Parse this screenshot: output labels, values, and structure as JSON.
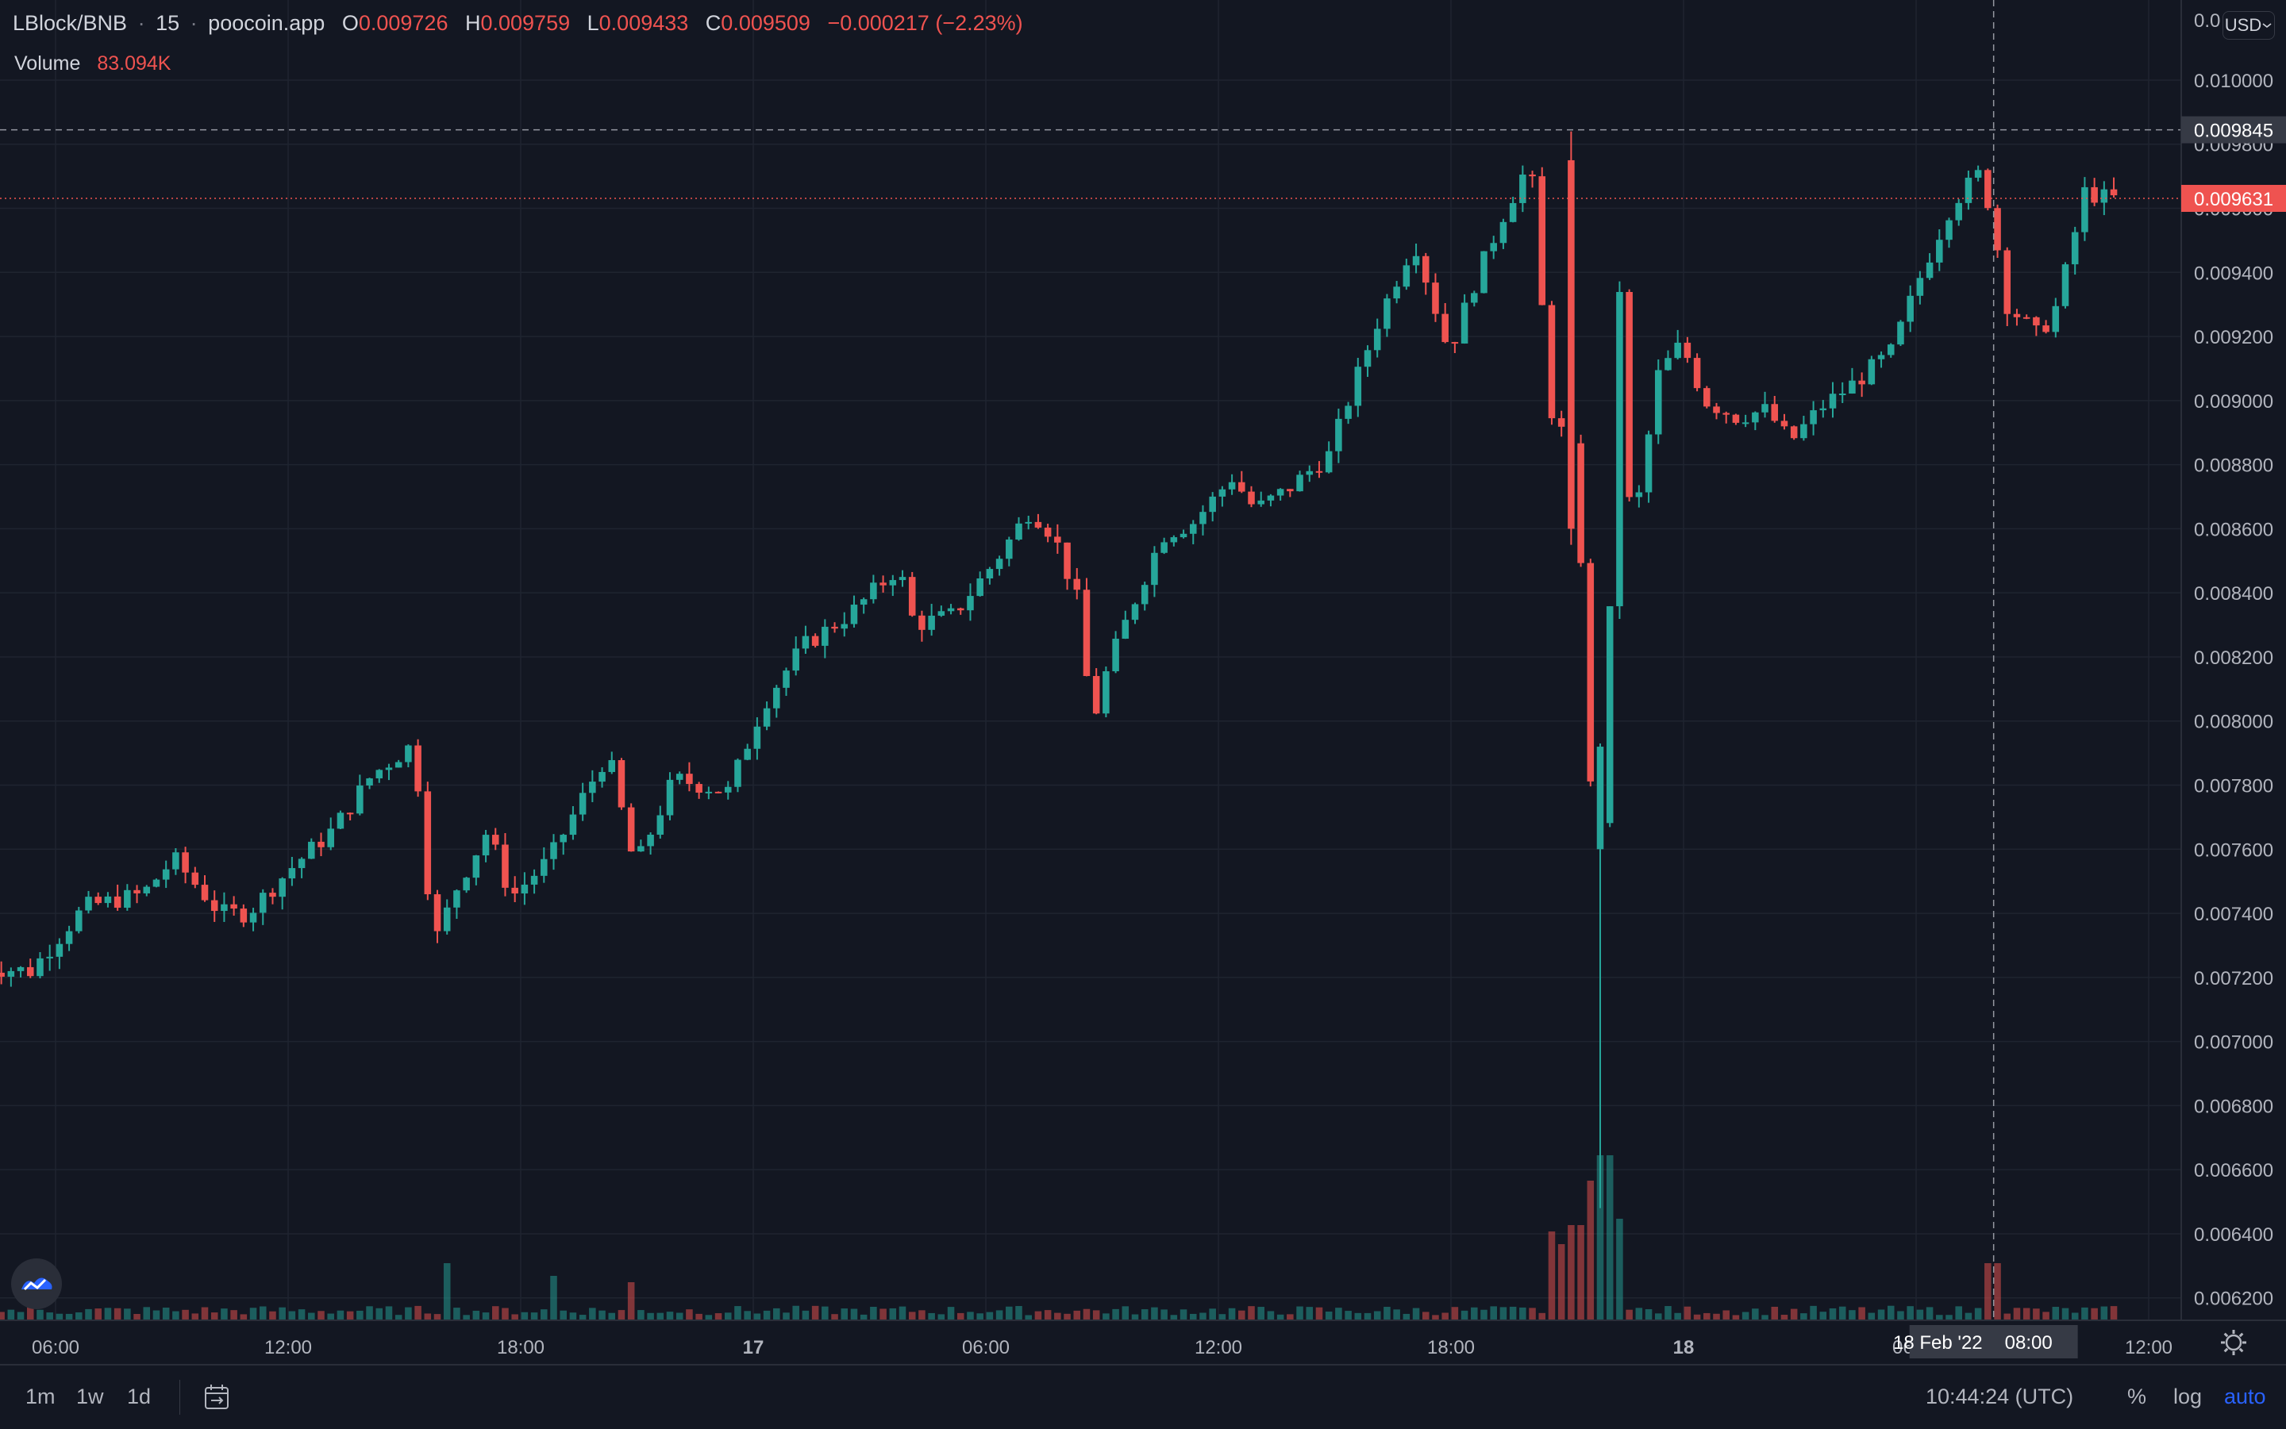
{
  "header": {
    "symbol": "LBlock/BNB",
    "interval": "15",
    "source": "poocoin.app",
    "open_label": "O",
    "open": "0.009726",
    "high_label": "H",
    "high": "0.009759",
    "low_label": "L",
    "low": "0.009433",
    "close_label": "C",
    "close": "0.009509",
    "change": "−0.000217 (−2.23%)"
  },
  "volume_legend": {
    "name": "Volume",
    "value": "83.094K"
  },
  "currency_button": {
    "label": "USD",
    "icon": "chevron-down-icon"
  },
  "price_labels": {
    "crosshair_price": "0.009845",
    "last_price": "0.009631",
    "top_partial": "0.0"
  },
  "crosshair_time": {
    "date": "18 Feb '22",
    "time": "08:00"
  },
  "bottom_bar": {
    "timeframes": [
      "1m",
      "1w",
      "1d"
    ],
    "goto_icon": "goto-date-icon",
    "clock": "10:44:24 (UTC)",
    "percent": "%",
    "log": "log",
    "auto": "auto"
  },
  "colors": {
    "up": "#26a69a",
    "down": "#ef5350",
    "background": "#131722",
    "grid": "#1f2430"
  },
  "chart_data": {
    "type": "candlestick",
    "title": "LBlock/BNB · 15 · poocoin.app",
    "y_axis_ticks": [
      "0.006200",
      "0.006400",
      "0.006600",
      "0.006800",
      "0.007000",
      "0.007200",
      "0.007400",
      "0.007600",
      "0.007800",
      "0.008000",
      "0.008200",
      "0.008400",
      "0.008600",
      "0.008800",
      "0.009000",
      "0.009200",
      "0.009400",
      "0.009600",
      "0.009800",
      "0.010000"
    ],
    "ylim": [
      0.00613,
      0.01025
    ],
    "x_axis_ticks": [
      {
        "label": "06:00",
        "hour": 6
      },
      {
        "label": "12:00",
        "hour": 12
      },
      {
        "label": "18:00",
        "hour": 18
      },
      {
        "label": "17",
        "hour": 24,
        "bold": true
      },
      {
        "label": "06:00",
        "hour": 30
      },
      {
        "label": "12:00",
        "hour": 36
      },
      {
        "label": "18:00",
        "hour": 42
      },
      {
        "label": "18",
        "hour": 48,
        "bold": true
      },
      {
        "label": "06:00",
        "hour": 54
      },
      {
        "label": "12:00",
        "hour": 60
      }
    ],
    "x_unit": "hours since 16 Feb '22 00:00 (UTC)",
    "candle_interval_minutes": 15,
    "crosshair": {
      "hour": 56,
      "price": 0.009845
    },
    "last_price": 0.009631,
    "series": [
      {
        "name": "price",
        "anchors": [
          [
            4.6,
            0.00723
          ],
          [
            5.6,
            0.00722
          ],
          [
            7.0,
            0.00742
          ],
          [
            8.5,
            0.00746
          ],
          [
            9.3,
            0.00757
          ],
          [
            10.5,
            0.0074
          ],
          [
            11.2,
            0.0074
          ],
          [
            12.4,
            0.00755
          ],
          [
            13.4,
            0.00766
          ],
          [
            14.4,
            0.00783
          ],
          [
            15.5,
            0.00793
          ],
          [
            16.0,
            0.0073
          ],
          [
            16.6,
            0.00748
          ],
          [
            17.4,
            0.00766
          ],
          [
            18.0,
            0.00745
          ],
          [
            19.0,
            0.00757
          ],
          [
            19.8,
            0.00775
          ],
          [
            20.5,
            0.0079
          ],
          [
            21.2,
            0.00754
          ],
          [
            22.2,
            0.00782
          ],
          [
            23.6,
            0.00778
          ],
          [
            24.5,
            0.00805
          ],
          [
            25.5,
            0.00823
          ],
          [
            26.8,
            0.00834
          ],
          [
            28.0,
            0.00848
          ],
          [
            28.4,
            0.0083
          ],
          [
            29.4,
            0.00833
          ],
          [
            30.5,
            0.0085
          ],
          [
            31.4,
            0.00866
          ],
          [
            32.0,
            0.00858
          ],
          [
            32.6,
            0.00838
          ],
          [
            33.0,
            0.00799
          ],
          [
            33.4,
            0.00817
          ],
          [
            34.1,
            0.00838
          ],
          [
            34.8,
            0.00858
          ],
          [
            35.6,
            0.00862
          ],
          [
            36.6,
            0.00876
          ],
          [
            37.2,
            0.00866
          ],
          [
            38.0,
            0.00872
          ],
          [
            39.1,
            0.00883
          ],
          [
            39.6,
            0.009
          ],
          [
            40.4,
            0.00926
          ],
          [
            41.3,
            0.0095
          ],
          [
            42.2,
            0.00915
          ],
          [
            42.8,
            0.00935
          ],
          [
            43.6,
            0.00958
          ],
          [
            44.3,
            0.00975
          ],
          [
            44.8,
            0.00898
          ],
          [
            45.5,
            0.0088
          ],
          [
            45.9,
            0.00765
          ],
          [
            46.2,
            0.00772
          ],
          [
            46.6,
            0.00935
          ],
          [
            46.9,
            0.00855
          ],
          [
            47.6,
            0.00908
          ],
          [
            48.2,
            0.00918
          ],
          [
            48.8,
            0.009
          ],
          [
            49.6,
            0.00895
          ],
          [
            50.4,
            0.00897
          ],
          [
            51.0,
            0.00887
          ],
          [
            51.8,
            0.00898
          ],
          [
            52.6,
            0.00905
          ],
          [
            53.6,
            0.00915
          ],
          [
            54.4,
            0.0094
          ],
          [
            55.2,
            0.00962
          ],
          [
            55.9,
            0.00971
          ],
          [
            56.2,
            0.00958
          ],
          [
            56.6,
            0.0093
          ],
          [
            57.4,
            0.0092
          ],
          [
            57.9,
            0.0093
          ],
          [
            58.6,
            0.00965
          ],
          [
            59.2,
            0.00963
          ]
        ],
        "notable_candles": [
          {
            "hour": 45.9,
            "open": 0.0076,
            "close": 0.00792,
            "low": 0.00648,
            "high": 0.00793,
            "note": "long lower wick"
          },
          {
            "hour": 45.1,
            "open": 0.00975,
            "close": 0.0086,
            "high": 0.00984,
            "low": 0.00855,
            "note": "sharp sell-off start"
          }
        ]
      },
      {
        "name": "Volume",
        "last_value": "83.094K",
        "relative_heights_note": "small bars with spikes around hour 16, 45–46, 56",
        "spikes": [
          {
            "hour": 16.0,
            "value": 0.9
          },
          {
            "hour": 18.8,
            "value": 0.7
          },
          {
            "hour": 20.8,
            "value": 0.6
          },
          {
            "hour": 44.6,
            "value": 1.4
          },
          {
            "hour": 45.0,
            "value": 1.2
          },
          {
            "hour": 45.2,
            "value": 1.5
          },
          {
            "hour": 45.6,
            "value": 2.2
          },
          {
            "hour": 46.0,
            "value": 2.6
          },
          {
            "hour": 46.3,
            "value": 1.6
          },
          {
            "hour": 56.0,
            "value": 0.9
          }
        ]
      }
    ]
  }
}
